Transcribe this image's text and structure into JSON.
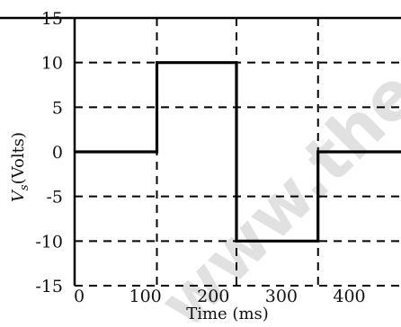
{
  "chart_data": {
    "type": "line",
    "title": "",
    "xlabel": "Time (ms)",
    "ylabel": {
      "symbol": "V",
      "subscript": "s",
      "unit": "(Volts)"
    },
    "xlim": [
      0,
      480
    ],
    "ylim": [
      -15,
      15
    ],
    "xticks": [
      0,
      100,
      200,
      300,
      400
    ],
    "xtick_labels": [
      "0",
      "100",
      "200",
      "300",
      "400"
    ],
    "yticks": [
      15,
      10,
      5,
      0,
      -5,
      -10,
      -15
    ],
    "ytick_labels": [
      "15",
      "10",
      "5",
      "0",
      "-5",
      "-10",
      "-15"
    ],
    "dashed_grid_x": [
      121,
      238,
      358
    ],
    "dashed_grid_y": [
      -15,
      -10,
      -5,
      5,
      10
    ],
    "grid": true,
    "series": [
      {
        "x": [
          0,
          121,
          121,
          238,
          238,
          358,
          358,
          480
        ],
        "y": [
          0,
          0,
          10,
          10,
          -10,
          -10,
          0,
          0
        ]
      }
    ]
  },
  "watermark": {
    "text": "www.the",
    "color": "#c9c9c9"
  }
}
